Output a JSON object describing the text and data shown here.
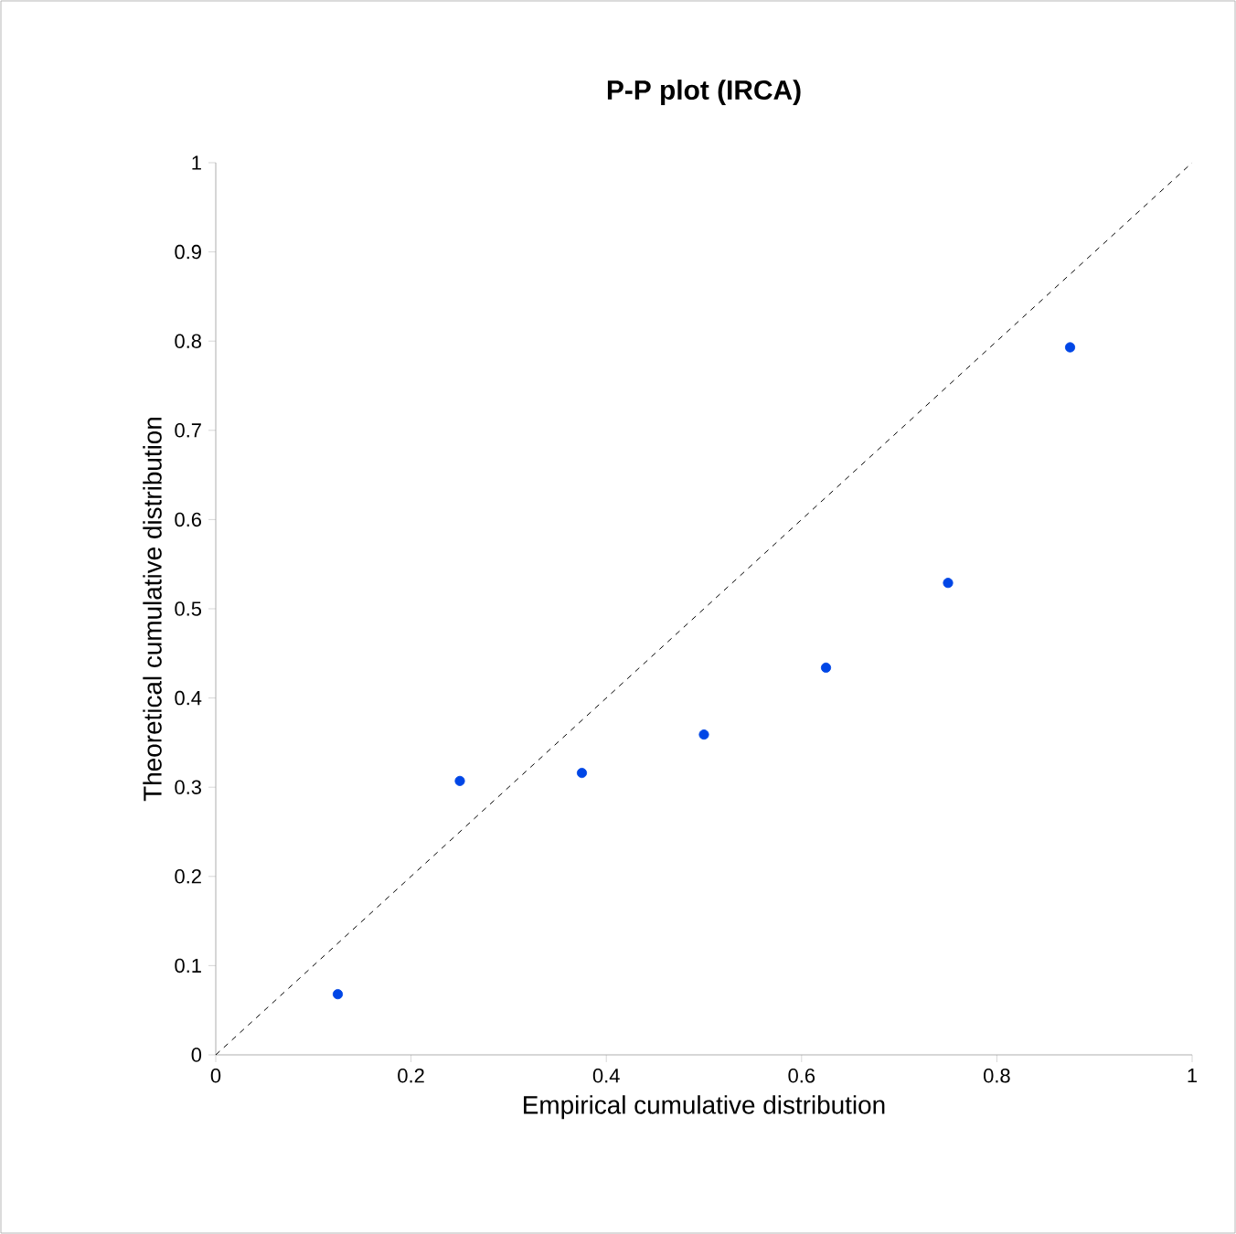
{
  "chart_data": {
    "type": "scatter",
    "title": "P-P plot (IRCA)",
    "xlabel": "Empirical cumulative distribution",
    "ylabel": "Theoretical cumulative distribution",
    "xlim": [
      0,
      1
    ],
    "ylim": [
      0,
      1
    ],
    "xticks": [
      0,
      0.2,
      0.4,
      0.6,
      0.8,
      1
    ],
    "yticks": [
      0,
      0.1,
      0.2,
      0.3,
      0.4,
      0.5,
      0.6,
      0.7,
      0.8,
      0.9,
      1
    ],
    "grid": false,
    "series": [
      {
        "type": "line",
        "color": "#000000",
        "line_style": "dashed",
        "marker": "none",
        "x": [
          0,
          1
        ],
        "values": [
          0,
          1
        ]
      },
      {
        "color": "#0046e6",
        "marker": "circle",
        "x": [
          0.125,
          0.25,
          0.375,
          0.5,
          0.625,
          0.75,
          0.875
        ],
        "values": [
          0.068,
          0.307,
          0.316,
          0.359,
          0.434,
          0.529,
          0.793
        ]
      }
    ]
  }
}
